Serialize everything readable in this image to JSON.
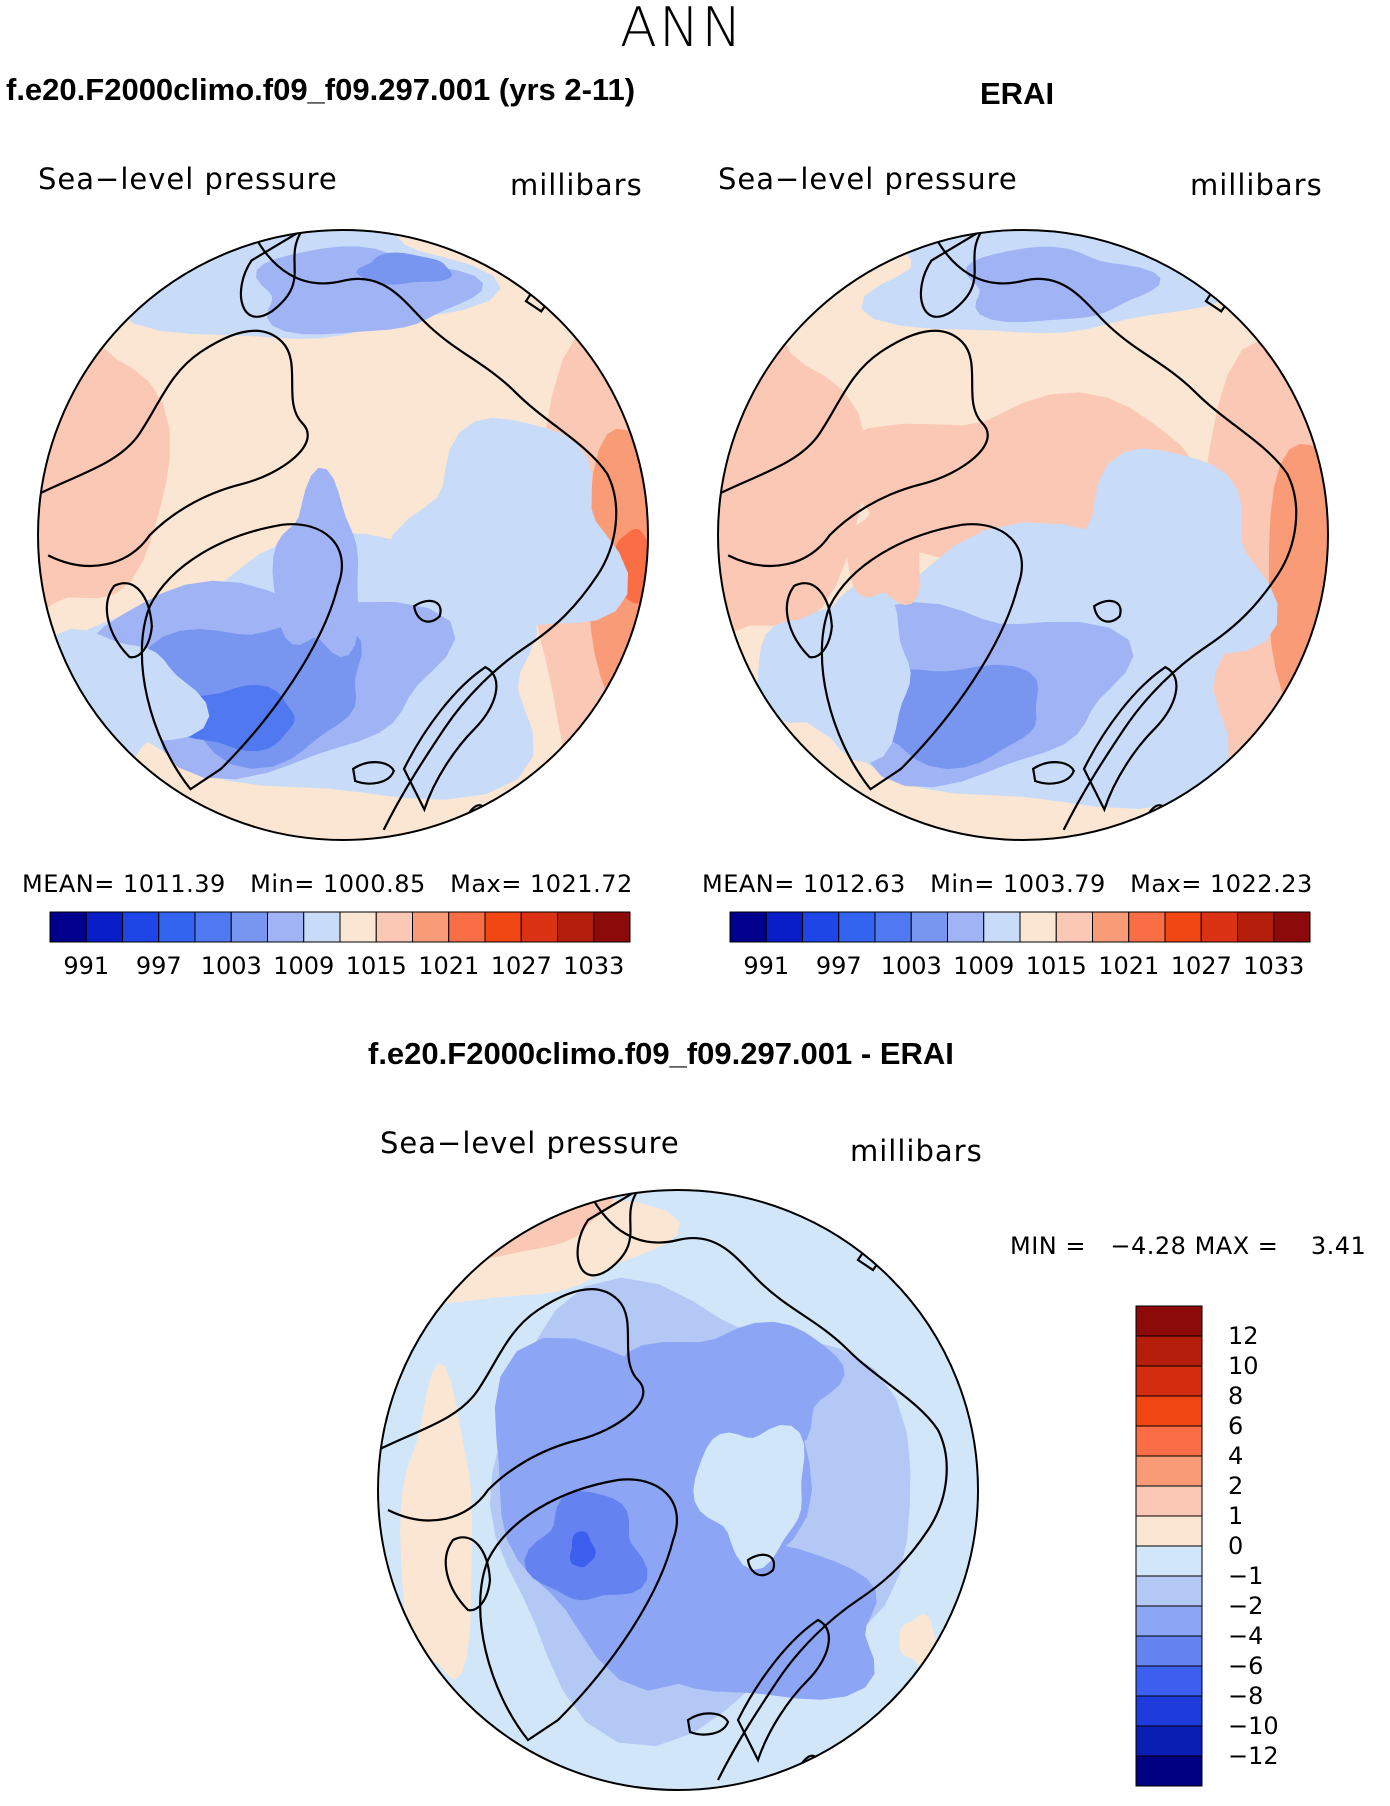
{
  "season": "ANN",
  "colormap": {
    "full": [
      "#00008c",
      "#0a1ec8",
      "#1e46e6",
      "#3264f0",
      "#5078f0",
      "#7896f0",
      "#a0b4f5",
      "#c8dcfa",
      "#fae6d2",
      "#fac8b4",
      "#fa9b78",
      "#fa6e46",
      "#f04614",
      "#dc3214",
      "#b41e0a",
      "#8c0a0a"
    ]
  },
  "panels": [
    {
      "title": "f.e20.F2000climo.f09_f09.297.001 (yrs 2-11)",
      "variable": "Sea−level pressure",
      "units": "millibars",
      "stats": {
        "mean_label": "MEAN=",
        "mean": "1011.39",
        "min_label": "Min=",
        "min": "1000.85",
        "max_label": "Max=",
        "max": "1021.72"
      },
      "colorbar_ticks": [
        "991",
        "997",
        "1003",
        "1009",
        "1015",
        "1021",
        "1027",
        "1033"
      ]
    },
    {
      "title": "ERAI",
      "variable": "Sea−level pressure",
      "units": "millibars",
      "stats": {
        "mean_label": "MEAN=",
        "mean": "1012.63",
        "min_label": "Min=",
        "min": "1003.79",
        "max_label": "Max=",
        "max": "1022.23"
      },
      "colorbar_ticks": [
        "991",
        "997",
        "1003",
        "1009",
        "1015",
        "1021",
        "1027",
        "1033"
      ]
    },
    {
      "title": "f.e20.F2000climo.f09_f09.297.001 - ERAI",
      "variable": "Sea−level pressure",
      "units": "millibars",
      "stats": {
        "min_label": "MIN =",
        "min": "−4.28",
        "max_label": "MAX =",
        "max": "3.41"
      },
      "colorbar_ticks": [
        "12",
        "10",
        "8",
        "6",
        "4",
        "2",
        "1",
        "0",
        "−1",
        "−2",
        "−4",
        "−6",
        "−8",
        "−10",
        "−12"
      ],
      "colors": [
        "#8c0a0a",
        "#b41e0a",
        "#d22d0f",
        "#f04614",
        "#fa6e46",
        "#fa9b78",
        "#fac8b4",
        "#fae6d2",
        "#d2e6fa",
        "#b4c8f5",
        "#8ca5f5",
        "#6482f0",
        "#3c5ff0",
        "#1e3cdc",
        "#0a1eb4",
        "#000082"
      ]
    }
  ],
  "chart_data": [
    {
      "type": "heatmap",
      "projection": "north-polar-stereographic",
      "title": "f.e20.F2000climo.f09_f09.297.001 (yrs 2-11)",
      "variable": "Sea-level pressure",
      "units": "millibars",
      "mean": 1011.39,
      "min": 1000.85,
      "max": 1021.72,
      "contour_levels": [
        991,
        994,
        997,
        1000,
        1003,
        1006,
        1009,
        1012,
        1015,
        1018,
        1021,
        1024,
        1027,
        1030,
        1033
      ]
    },
    {
      "type": "heatmap",
      "projection": "north-polar-stereographic",
      "title": "ERAI",
      "variable": "Sea-level pressure",
      "units": "millibars",
      "mean": 1012.63,
      "min": 1003.79,
      "max": 1022.23,
      "contour_levels": [
        991,
        994,
        997,
        1000,
        1003,
        1006,
        1009,
        1012,
        1015,
        1018,
        1021,
        1024,
        1027,
        1030,
        1033
      ]
    },
    {
      "type": "heatmap",
      "projection": "north-polar-stereographic",
      "title": "f.e20.F2000climo.f09_f09.297.001 - ERAI",
      "variable": "Sea-level pressure",
      "units": "millibars",
      "min": -4.28,
      "max": 3.41,
      "contour_levels": [
        -12,
        -10,
        -8,
        -6,
        -4,
        -2,
        -1,
        0,
        1,
        2,
        4,
        6,
        8,
        10,
        12
      ]
    }
  ]
}
